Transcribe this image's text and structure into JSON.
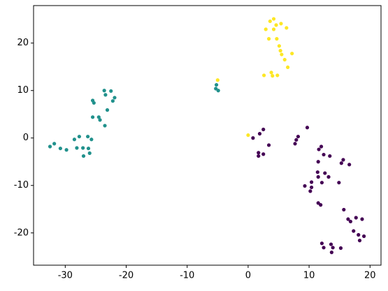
{
  "chart_data": {
    "type": "scatter",
    "xlim": [
      -35.2,
      21.8
    ],
    "ylim": [
      -26.8,
      27.9
    ],
    "xticks": [
      -30,
      -20,
      -10,
      0,
      10,
      20
    ],
    "yticks": [
      -20,
      -10,
      0,
      10,
      20
    ],
    "grid": false,
    "series": [
      {
        "color": "#440154",
        "x": [
          0.8,
          2.5,
          1.9,
          9.7,
          8.2,
          7.9,
          7.7,
          3.4,
          12.0,
          11.6,
          1.7,
          1.7,
          2.5,
          12.4,
          13.4,
          11.5,
          15.6,
          15.3,
          16.6,
          11.4,
          12.6,
          11.5,
          13.2,
          10.4,
          12.1,
          14.9,
          9.3,
          10.4,
          10.2,
          11.5,
          11.9,
          15.7,
          16.4,
          16.8,
          17.7,
          18.7,
          17.3,
          18.1,
          19.0,
          18.3,
          12.1,
          13.6,
          12.4,
          13.9,
          15.2,
          13.7
        ],
        "y": [
          0,
          1.8,
          0.9,
          2.2,
          0.3,
          -0.4,
          -1.2,
          -1.5,
          -1.8,
          -2.4,
          -3.1,
          -3.8,
          -3.4,
          -3.5,
          -3.8,
          -5.0,
          -4.6,
          -5.3,
          -5.6,
          -7.2,
          -7.4,
          -8.2,
          -8.2,
          -9.3,
          -9.4,
          -9.4,
          -10.1,
          -10.4,
          -11.2,
          -13.7,
          -14.1,
          -15.1,
          -17.1,
          -17.6,
          -16.8,
          -17.1,
          -19.6,
          -20.4,
          -20.7,
          -21.6,
          -22.2,
          -22.4,
          -23.1,
          -23.1,
          -23.2,
          -24.1
        ]
      },
      {
        "color": "#21918c",
        "x": [
          -5.2,
          -5.3,
          -4.9,
          -23.6,
          -22.5,
          -23.4,
          -21.9,
          -25.5,
          -22.2,
          -25.3,
          -23.1,
          -25.5,
          -24.5,
          -24.3,
          -23.5,
          -27.7,
          -26.3,
          -28.5,
          -25.7,
          -31.8,
          -32.5,
          -30.8,
          -29.8,
          -28.1,
          -27.1,
          -26.2,
          -26.0,
          -27.0
        ],
        "y": [
          11.2,
          10.4,
          10.0,
          10.0,
          9.9,
          9.1,
          8.5,
          7.9,
          7.8,
          7.4,
          5.9,
          4.4,
          4.4,
          3.8,
          2.6,
          0.3,
          0.3,
          -0.3,
          -0.3,
          -1.2,
          -1.8,
          -2.2,
          -2.5,
          -2.1,
          -2.1,
          -2.2,
          -3.2,
          -3.8
        ]
      },
      {
        "color": "#fde725",
        "x": [
          4.2,
          3.6,
          4.6,
          5.4,
          2.9,
          4.2,
          6.3,
          3.4,
          4.7,
          5.1,
          5.3,
          5.5,
          7.2,
          6.0,
          6.5,
          3.8,
          2.6,
          4.0,
          4.8,
          -5.0,
          0.0
        ],
        "y": [
          25.1,
          24.6,
          23.8,
          24.1,
          22.9,
          22.9,
          23.2,
          20.9,
          20.9,
          19.4,
          18.4,
          17.6,
          17.8,
          16.5,
          14.9,
          13.8,
          13.2,
          13.1,
          13.2,
          12.2,
          0.6
        ]
      }
    ]
  }
}
